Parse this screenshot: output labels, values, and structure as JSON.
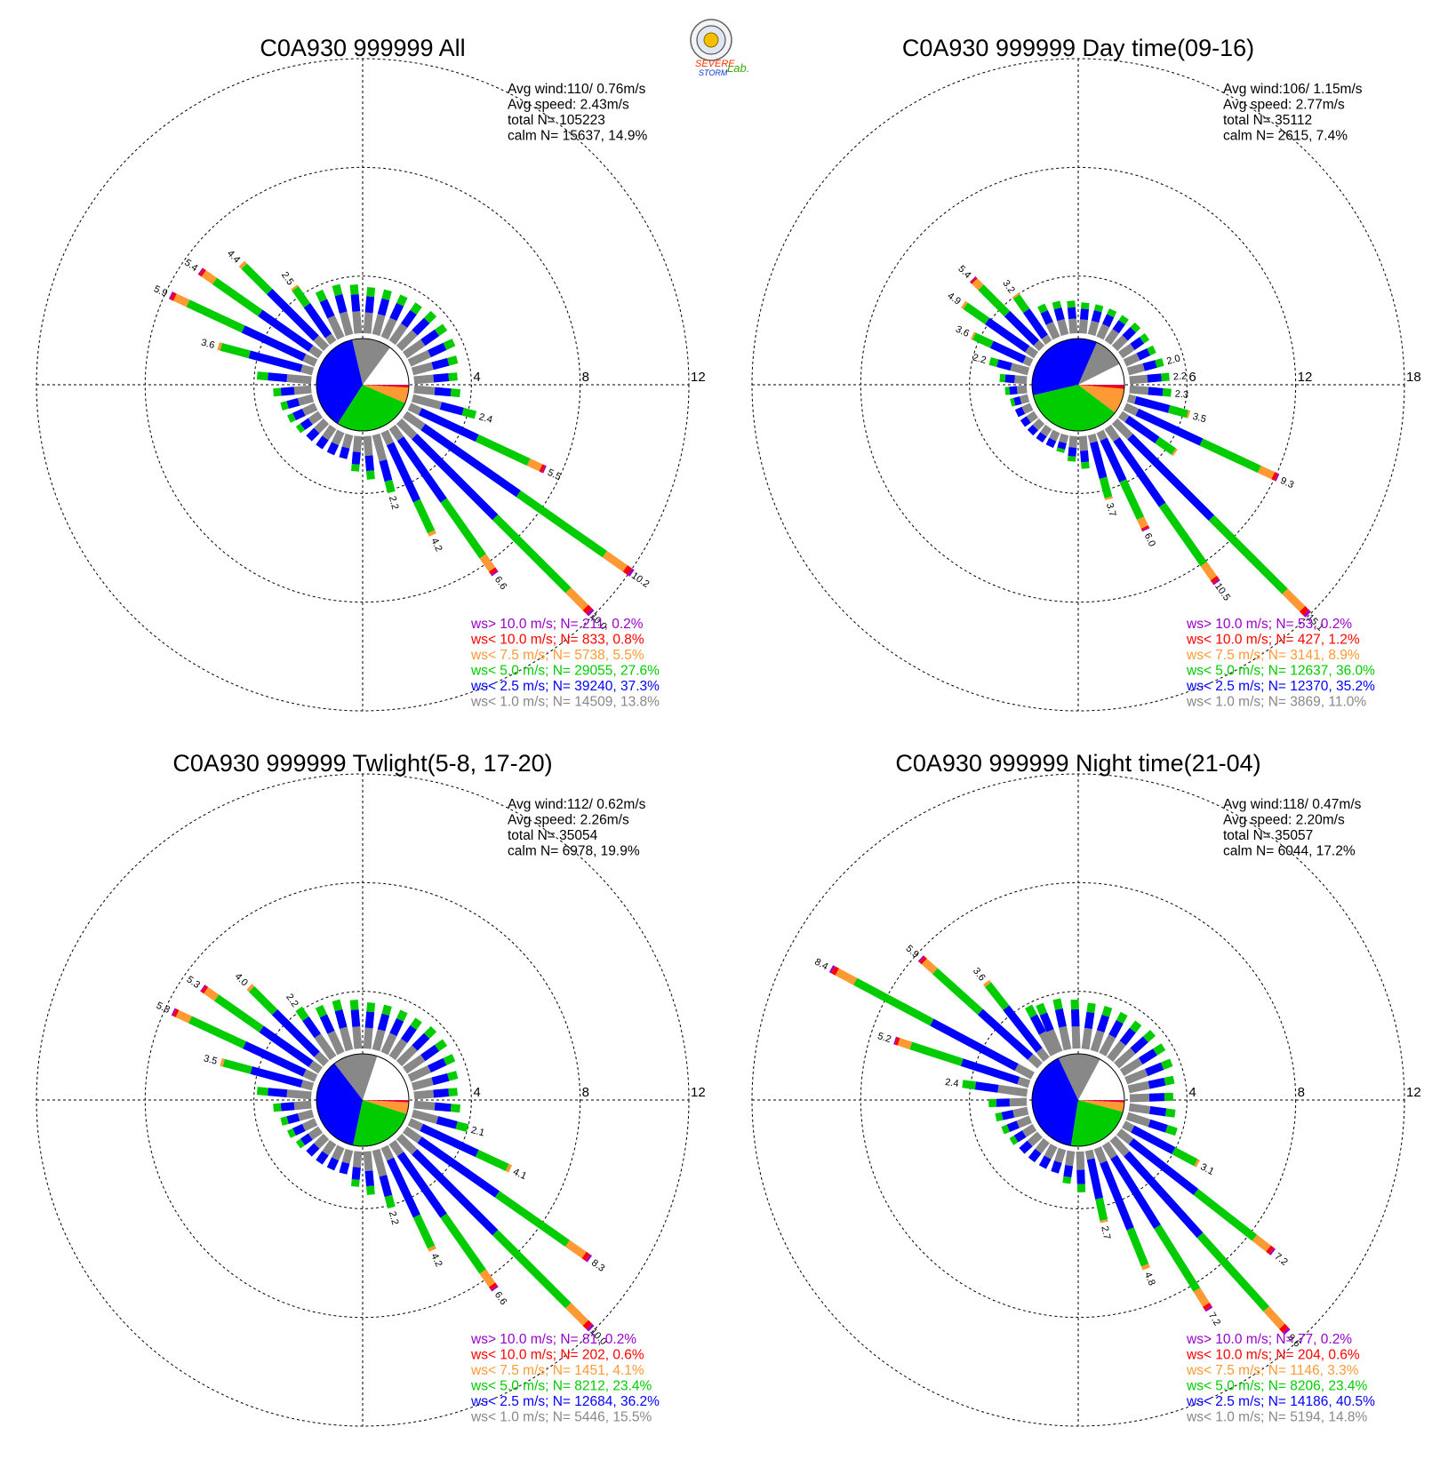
{
  "colors": {
    "gt10": "#9900cc",
    "lt10": "#ff0000",
    "lt7_5": "#ff9933",
    "lt5": "#00cc00",
    "lt2_5": "#0000ff",
    "lt1": "#888888"
  },
  "logo": {
    "line1": "SEVERE",
    "line2": "STORM",
    "line3": "Lab."
  },
  "chart_data": [
    {
      "type": "wind-rose",
      "title": "C0A930 999999 All",
      "stats": [
        "Avg wind:110/ 0.76m/s",
        "Avg speed: 2.43m/s",
        "total N=      105223",
        "calm N=  15637,  14.9%"
      ],
      "legend": [
        "ws> 10.0 m/s; N=   211,  0.2%",
        "ws< 10.0 m/s; N=   833,  0.8%",
        "ws<  7.5 m/s; N=  5738,  5.5%",
        "ws<  5.0 m/s; N= 29055, 27.6%",
        "ws<  2.5 m/s; N= 39240, 37.3%",
        "ws<  1.0 m/s; N= 14509, 13.8%"
      ],
      "legend_colors": [
        "gt10",
        "lt10",
        "lt7_5",
        "lt5",
        "lt2_5",
        "lt1"
      ],
      "rings": [
        4,
        8,
        12
      ],
      "pie": [
        14.9,
        13.8,
        37.3,
        27.6,
        5.5,
        0.8,
        0.2
      ],
      "bars": [
        {
          "dir": 295,
          "total": 5.9,
          "label": "5.9"
        },
        {
          "dir": 305,
          "total": 5.4,
          "label": "5.4"
        },
        {
          "dir": 315,
          "total": 4.4,
          "label": "4.4"
        },
        {
          "dir": 325,
          "total": 2.5,
          "label": "2.5"
        },
        {
          "dir": 285,
          "total": 3.6,
          "label": "3.6"
        },
        {
          "dir": 275,
          "total": 2.0
        },
        {
          "dir": 265,
          "total": 1.4
        },
        {
          "dir": 255,
          "total": 1.2
        },
        {
          "dir": 245,
          "total": 1.1
        },
        {
          "dir": 235,
          "total": 1.0
        },
        {
          "dir": 225,
          "total": 0.9
        },
        {
          "dir": 215,
          "total": 0.9
        },
        {
          "dir": 205,
          "total": 0.9
        },
        {
          "dir": 195,
          "total": 0.9
        },
        {
          "dir": 185,
          "total": 1.3
        },
        {
          "dir": 175,
          "total": 1.6
        },
        {
          "dir": 165,
          "total": 2.2,
          "label": "2.2"
        },
        {
          "dir": 155,
          "total": 4.2,
          "label": "4.2"
        },
        {
          "dir": 145,
          "total": 6.6,
          "label": "6.6"
        },
        {
          "dir": 135,
          "total": 10.0,
          "label": "10.0"
        },
        {
          "dir": 125,
          "total": 10.2,
          "label": "10.2"
        },
        {
          "dir": 115,
          "total": 5.5,
          "label": "5.5"
        },
        {
          "dir": 105,
          "total": 2.4,
          "label": "2.4"
        },
        {
          "dir": 95,
          "total": 1.7
        },
        {
          "dir": 85,
          "total": 1.6
        },
        {
          "dir": 75,
          "total": 1.7
        },
        {
          "dir": 65,
          "total": 1.8
        },
        {
          "dir": 55,
          "total": 1.8
        },
        {
          "dir": 45,
          "total": 1.8
        },
        {
          "dir": 35,
          "total": 1.7
        },
        {
          "dir": 25,
          "total": 1.7
        },
        {
          "dir": 15,
          "total": 1.7
        },
        {
          "dir": 5,
          "total": 1.7
        },
        {
          "dir": 355,
          "total": 1.8
        },
        {
          "dir": 345,
          "total": 1.9
        },
        {
          "dir": 335,
          "total": 1.9
        }
      ]
    },
    {
      "type": "wind-rose",
      "title": "C0A930 999999 Day time(09-16)",
      "stats": [
        "Avg wind:106/ 1.15m/s",
        "Avg speed: 2.77m/s",
        "total N=      35112",
        "calm N=  2615,   7.4%"
      ],
      "legend": [
        "ws> 10.0 m/s; N=    53,  0.2%",
        "ws< 10.0 m/s; N=   427,  1.2%",
        "ws<  7.5 m/s; N=  3141,  8.9%",
        "ws<  5.0 m/s; N= 12637, 36.0%",
        "ws<  2.5 m/s; N= 12370, 35.2%",
        "ws<  1.0 m/s; N=  3869, 11.0%"
      ],
      "legend_colors": [
        "gt10",
        "lt10",
        "lt7_5",
        "lt5",
        "lt2_5",
        "lt1"
      ],
      "rings": [
        6,
        12,
        18
      ],
      "pie": [
        7.4,
        11.0,
        35.2,
        36.0,
        8.9,
        1.2,
        0.2
      ],
      "bars": [
        {
          "dir": 315,
          "total": 5.4,
          "label": "5.4"
        },
        {
          "dir": 305,
          "total": 4.9,
          "label": "4.9"
        },
        {
          "dir": 325,
          "total": 3.2,
          "label": "3.2"
        },
        {
          "dir": 295,
          "total": 3.6,
          "label": "3.6"
        },
        {
          "dir": 285,
          "total": 2.2,
          "label": "2.2"
        },
        {
          "dir": 275,
          "total": 1.5
        },
        {
          "dir": 265,
          "total": 1.2
        },
        {
          "dir": 255,
          "total": 1.0
        },
        {
          "dir": 245,
          "total": 0.9
        },
        {
          "dir": 235,
          "total": 0.9
        },
        {
          "dir": 225,
          "total": 0.9
        },
        {
          "dir": 215,
          "total": 0.9
        },
        {
          "dir": 205,
          "total": 0.9
        },
        {
          "dir": 195,
          "total": 1.0
        },
        {
          "dir": 185,
          "total": 1.4
        },
        {
          "dir": 175,
          "total": 1.8
        },
        {
          "dir": 165,
          "total": 3.7,
          "label": "3.7"
        },
        {
          "dir": 155,
          "total": 6.0,
          "label": "6.0"
        },
        {
          "dir": 145,
          "total": 10.5,
          "label": "10.5"
        },
        {
          "dir": 135,
          "total": 15.1,
          "label": "15.1"
        },
        {
          "dir": 115,
          "total": 9.3,
          "label": "9.3"
        },
        {
          "dir": 125,
          "total": 3.7
        },
        {
          "dir": 105,
          "total": 3.5,
          "label": "3.5"
        },
        {
          "dir": 95,
          "total": 2.3,
          "label": "2.3"
        },
        {
          "dir": 85,
          "total": 2.2,
          "label": "2.2"
        },
        {
          "dir": 75,
          "total": 2.0,
          "label": "2.0"
        },
        {
          "dir": 65,
          "total": 1.8
        },
        {
          "dir": 55,
          "total": 1.8
        },
        {
          "dir": 45,
          "total": 1.8
        },
        {
          "dir": 35,
          "total": 1.7
        },
        {
          "dir": 25,
          "total": 1.7
        },
        {
          "dir": 15,
          "total": 1.7
        },
        {
          "dir": 5,
          "total": 1.7
        },
        {
          "dir": 355,
          "total": 1.8
        },
        {
          "dir": 345,
          "total": 1.9
        },
        {
          "dir": 335,
          "total": 2.0
        }
      ]
    },
    {
      "type": "wind-rose",
      "title": "C0A930 999999 Twlight(5-8, 17-20)",
      "stats": [
        "Avg wind:112/ 0.62m/s",
        "Avg speed: 2.26m/s",
        "total N=      35054",
        "calm N=  6978,  19.9%"
      ],
      "legend": [
        "ws> 10.0 m/s; N=    81,  0.2%",
        "ws< 10.0 m/s; N=   202,  0.6%",
        "ws<  7.5 m/s; N=  1451,  4.1%",
        "ws<  5.0 m/s; N=  8212, 23.4%",
        "ws<  2.5 m/s; N= 12684, 36.2%",
        "ws<  1.0 m/s; N=  5446, 15.5%"
      ],
      "legend_colors": [
        "gt10",
        "lt10",
        "lt7_5",
        "lt5",
        "lt2_5",
        "lt1"
      ],
      "rings": [
        4,
        8,
        12
      ],
      "pie": [
        19.9,
        15.5,
        36.2,
        23.4,
        4.1,
        0.6,
        0.2
      ],
      "bars": [
        {
          "dir": 295,
          "total": 5.8,
          "label": "5.8"
        },
        {
          "dir": 305,
          "total": 5.3,
          "label": "5.3"
        },
        {
          "dir": 315,
          "total": 4.0,
          "label": "4.0"
        },
        {
          "dir": 325,
          "total": 2.2,
          "label": "2.2"
        },
        {
          "dir": 285,
          "total": 3.5,
          "label": "3.5"
        },
        {
          "dir": 275,
          "total": 2.0
        },
        {
          "dir": 265,
          "total": 1.4
        },
        {
          "dir": 255,
          "total": 1.2
        },
        {
          "dir": 245,
          "total": 1.1
        },
        {
          "dir": 235,
          "total": 1.0
        },
        {
          "dir": 225,
          "total": 0.9
        },
        {
          "dir": 215,
          "total": 0.9
        },
        {
          "dir": 205,
          "total": 0.9
        },
        {
          "dir": 195,
          "total": 0.9
        },
        {
          "dir": 185,
          "total": 1.3
        },
        {
          "dir": 175,
          "total": 1.6
        },
        {
          "dir": 165,
          "total": 2.2,
          "label": "2.2"
        },
        {
          "dir": 155,
          "total": 4.2,
          "label": "4.2"
        },
        {
          "dir": 145,
          "total": 6.6,
          "label": "6.6"
        },
        {
          "dir": 135,
          "total": 10.0,
          "label": "10.0"
        },
        {
          "dir": 125,
          "total": 8.3,
          "label": "8.3"
        },
        {
          "dir": 115,
          "total": 4.1,
          "label": "4.1"
        },
        {
          "dir": 105,
          "total": 2.1,
          "label": "2.1"
        },
        {
          "dir": 95,
          "total": 1.7
        },
        {
          "dir": 85,
          "total": 1.6
        },
        {
          "dir": 75,
          "total": 1.7
        },
        {
          "dir": 65,
          "total": 1.8
        },
        {
          "dir": 55,
          "total": 1.8
        },
        {
          "dir": 45,
          "total": 1.8
        },
        {
          "dir": 35,
          "total": 1.7
        },
        {
          "dir": 25,
          "total": 1.7
        },
        {
          "dir": 15,
          "total": 1.7
        },
        {
          "dir": 5,
          "total": 1.7
        },
        {
          "dir": 355,
          "total": 1.8
        },
        {
          "dir": 345,
          "total": 1.9
        },
        {
          "dir": 335,
          "total": 1.9
        }
      ]
    },
    {
      "type": "wind-rose",
      "title": "C0A930 999999 Night time(21-04)",
      "stats": [
        "Avg wind:118/ 0.47m/s",
        "Avg speed: 2.20m/s",
        "total N=      35057",
        "calm N=  6044,  17.2%"
      ],
      "legend": [
        "ws> 10.0 m/s; N=    77,  0.2%",
        "ws< 10.0 m/s; N=   204,  0.6%",
        "ws<  7.5 m/s; N=  1146,  3.3%",
        "ws<  5.0 m/s; N=  8206, 23.4%",
        "ws<  2.5 m/s; N= 14186, 40.5%",
        "ws<  1.0 m/s; N=  5194, 14.8%"
      ],
      "legend_colors": [
        "gt10",
        "lt10",
        "lt7_5",
        "lt5",
        "lt2_5",
        "lt1"
      ],
      "rings": [
        4,
        8,
        12
      ],
      "pie": [
        17.2,
        14.8,
        40.5,
        23.4,
        3.3,
        0.6,
        0.2
      ],
      "bars": [
        {
          "dir": 298,
          "total": 8.4,
          "label": "8.4"
        },
        {
          "dir": 312,
          "total": 5.9,
          "label": "5.9"
        },
        {
          "dir": 322,
          "total": 3.6,
          "label": "3.6"
        },
        {
          "dir": 288,
          "total": 5.2,
          "label": "5.2"
        },
        {
          "dir": 278,
          "total": 2.4,
          "label": "2.4"
        },
        {
          "dir": 268,
          "total": 1.4
        },
        {
          "dir": 258,
          "total": 1.2
        },
        {
          "dir": 248,
          "total": 1.1
        },
        {
          "dir": 238,
          "total": 1.0
        },
        {
          "dir": 228,
          "total": 0.9
        },
        {
          "dir": 218,
          "total": 0.9
        },
        {
          "dir": 208,
          "total": 0.9
        },
        {
          "dir": 198,
          "total": 0.9
        },
        {
          "dir": 188,
          "total": 1.2
        },
        {
          "dir": 178,
          "total": 1.5
        },
        {
          "dir": 168,
          "total": 2.7,
          "label": "2.7"
        },
        {
          "dir": 158,
          "total": 4.8,
          "label": "4.8"
        },
        {
          "dir": 148,
          "total": 7.2,
          "label": "7.2"
        },
        {
          "dir": 138,
          "total": 9.6,
          "label": "9.6"
        },
        {
          "dir": 128,
          "total": 7.2,
          "label": "7.2"
        },
        {
          "dir": 118,
          "total": 3.1,
          "label": "3.1"
        },
        {
          "dir": 108,
          "total": 1.9
        },
        {
          "dir": 98,
          "total": 1.7
        },
        {
          "dir": 88,
          "total": 1.6
        },
        {
          "dir": 78,
          "total": 1.7
        },
        {
          "dir": 68,
          "total": 1.8
        },
        {
          "dir": 58,
          "total": 1.8
        },
        {
          "dir": 48,
          "total": 1.8
        },
        {
          "dir": 38,
          "total": 1.7
        },
        {
          "dir": 28,
          "total": 1.7
        },
        {
          "dir": 18,
          "total": 1.7
        },
        {
          "dir": 8,
          "total": 1.7
        },
        {
          "dir": 358,
          "total": 1.8
        },
        {
          "dir": 348,
          "total": 1.9
        },
        {
          "dir": 338,
          "total": 1.9
        },
        {
          "dir": 332,
          "total": 2.0
        }
      ]
    }
  ]
}
